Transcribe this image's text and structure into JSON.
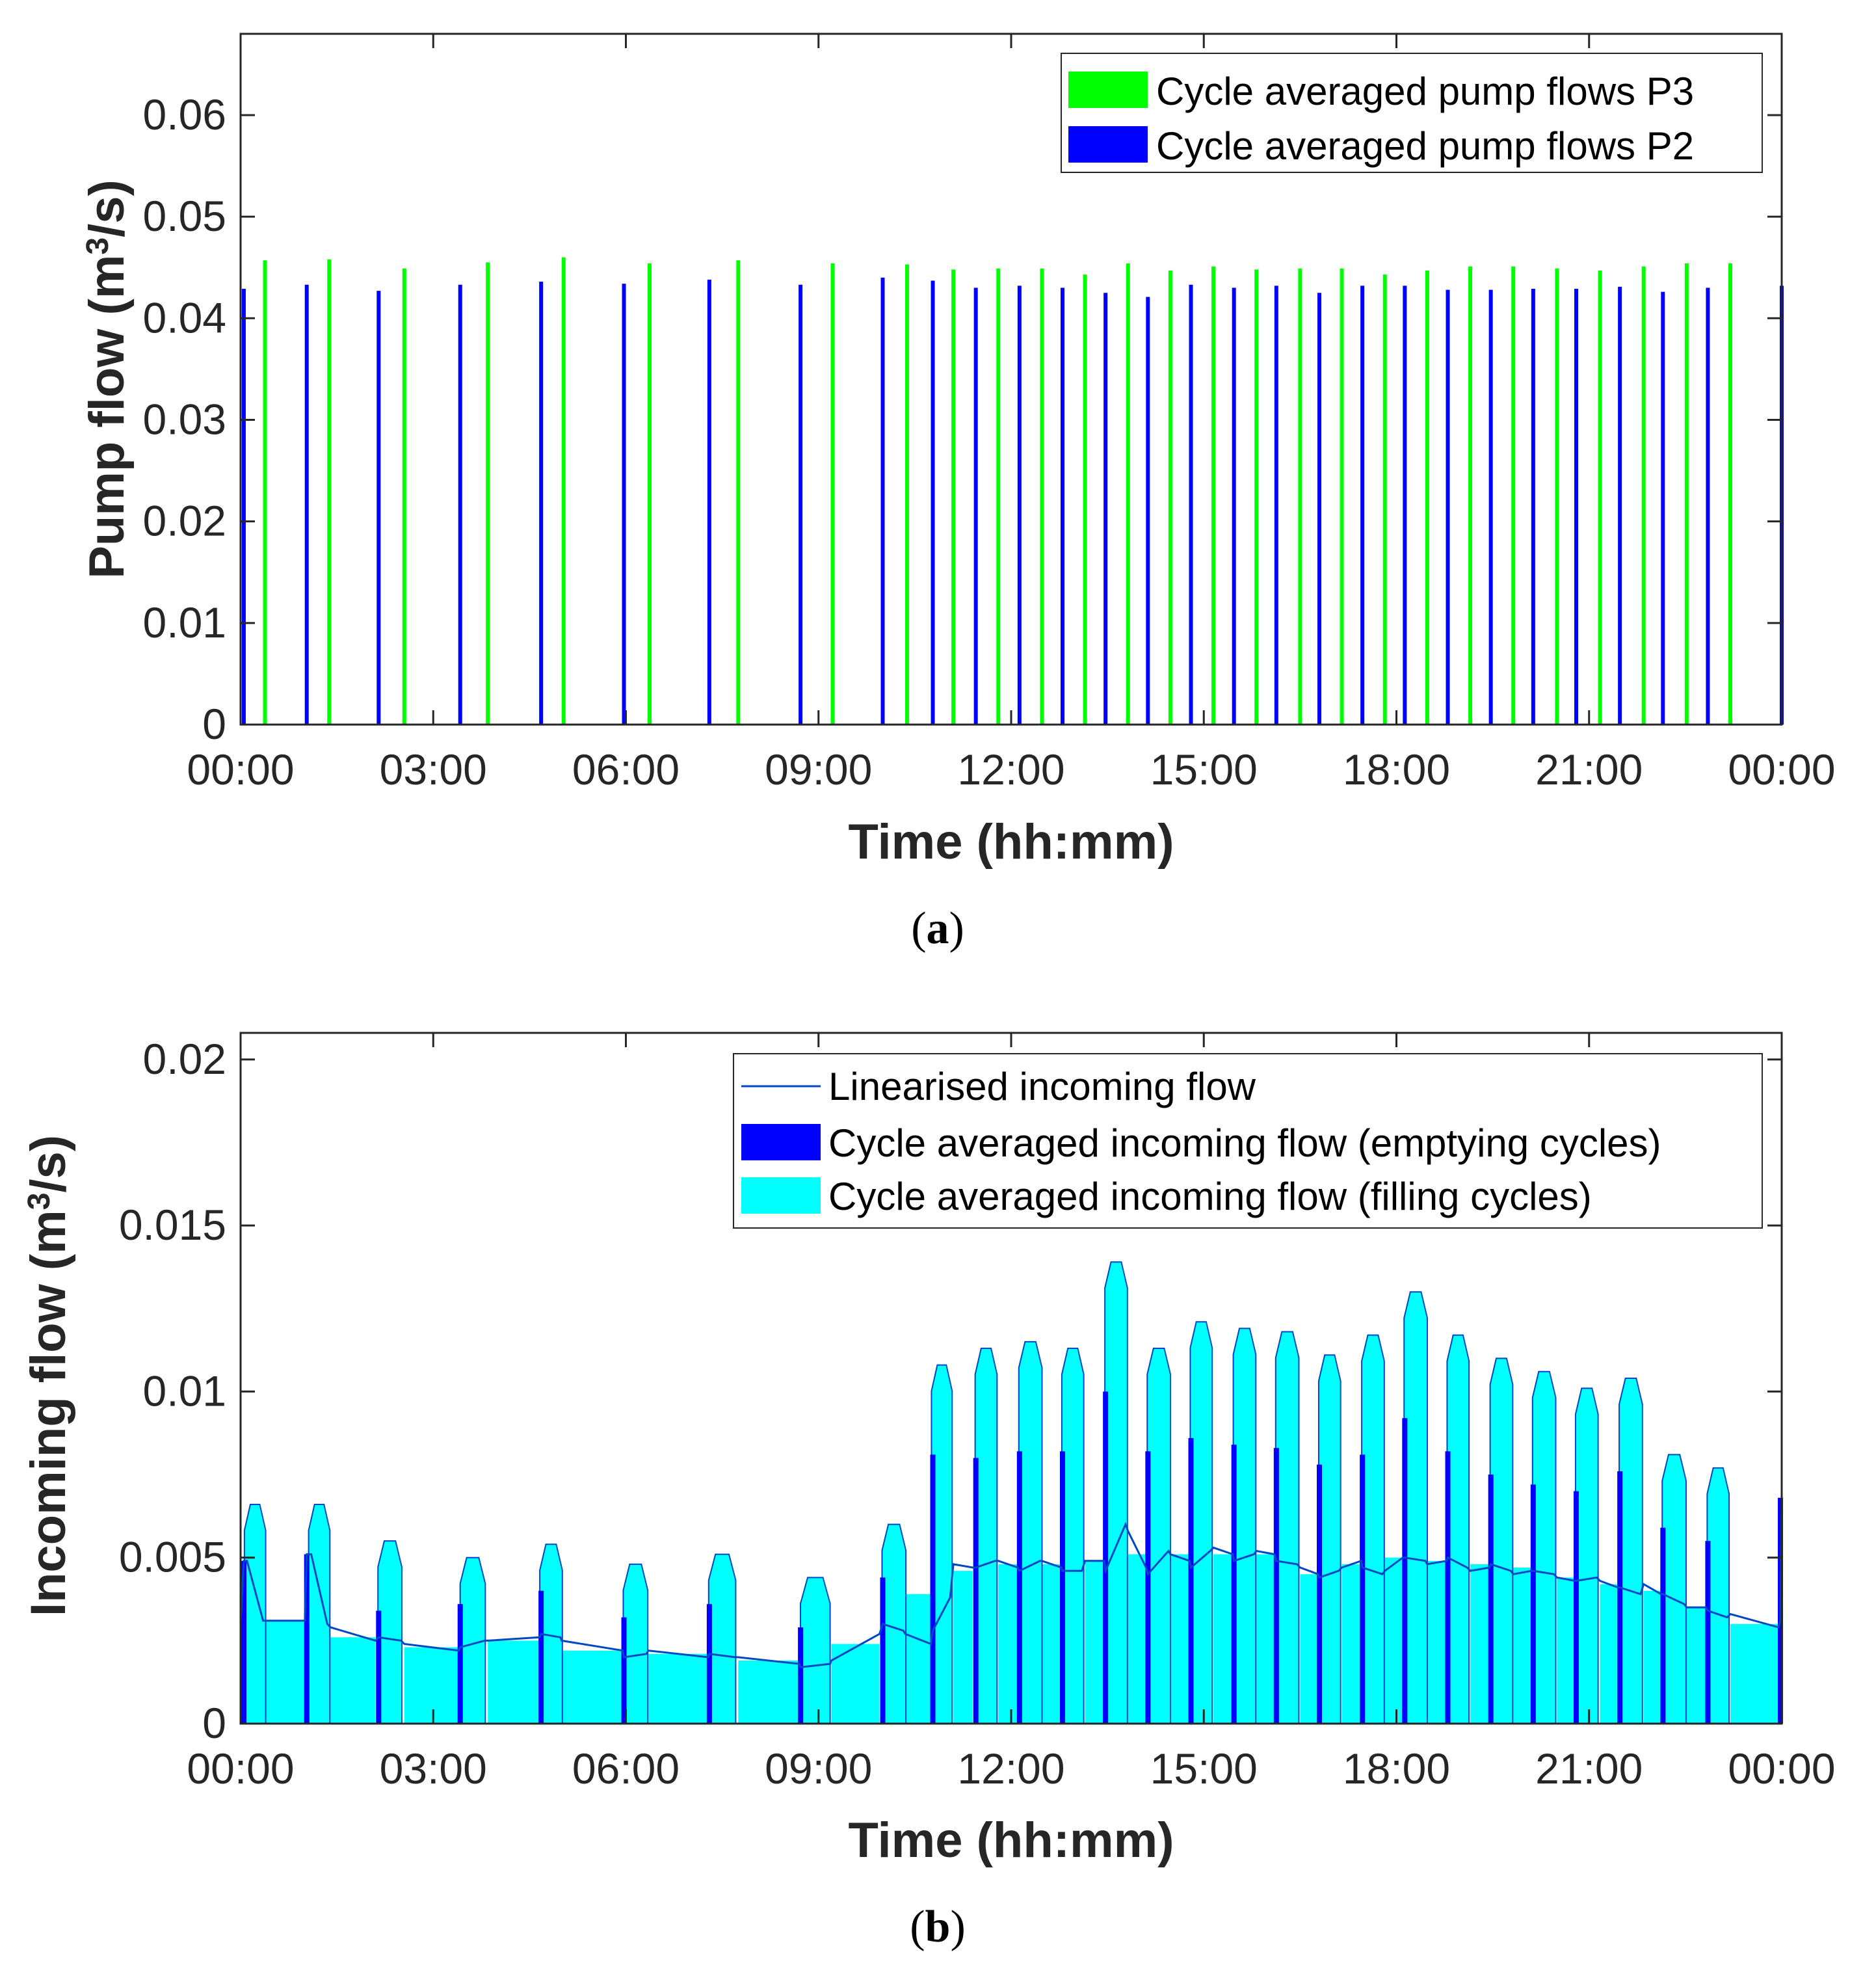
{
  "chart_data": [
    {
      "id": "a",
      "panel_label": "a",
      "type": "bar",
      "xlabel": "Time (hh:mm)",
      "ylabel": "Pump flow (m³/s)",
      "ylabel_parts": [
        "Pump flow (m",
        "3",
        "/s)"
      ],
      "xlim": [
        0,
        24
      ],
      "ylim": [
        0,
        0.068
      ],
      "xticks": [
        0,
        3,
        6,
        9,
        12,
        15,
        18,
        21,
        24
      ],
      "xtick_labels": [
        "00:00",
        "03:00",
        "06:00",
        "09:00",
        "12:00",
        "15:00",
        "18:00",
        "21:00",
        "00:00"
      ],
      "yticks": [
        0,
        0.01,
        0.02,
        0.03,
        0.04,
        0.05,
        0.06
      ],
      "ytick_labels": [
        "0",
        "0.01",
        "0.02",
        "0.03",
        "0.04",
        "0.05",
        "0.06"
      ],
      "legend_position": "top-right",
      "series": [
        {
          "name": "Cycle averaged pump flows P3",
          "color": "#00ff00",
          "x": [
            0.38,
            1.38,
            2.55,
            3.85,
            5.03,
            6.37,
            7.75,
            9.22,
            10.38,
            11.1,
            11.8,
            12.48,
            13.15,
            13.82,
            14.48,
            15.15,
            15.82,
            16.5,
            17.15,
            17.82,
            18.48,
            19.15,
            19.82,
            20.5,
            21.17,
            21.85,
            22.52,
            23.2
          ],
          "values": [
            0.0457,
            0.0458,
            0.0449,
            0.0455,
            0.046,
            0.0454,
            0.0457,
            0.0454,
            0.0453,
            0.0448,
            0.0449,
            0.0449,
            0.0443,
            0.0454,
            0.0447,
            0.0451,
            0.0448,
            0.0449,
            0.0449,
            0.0443,
            0.0447,
            0.0451,
            0.0451,
            0.0449,
            0.0447,
            0.0451,
            0.0454,
            0.0454
          ]
        },
        {
          "name": "Cycle averaged pump flows P2",
          "color": "#0000ff",
          "x": [
            0.05,
            1.03,
            2.15,
            3.42,
            4.68,
            5.97,
            7.3,
            8.72,
            10.0,
            10.78,
            11.45,
            12.13,
            12.8,
            13.47,
            14.13,
            14.8,
            15.47,
            16.13,
            16.8,
            17.47,
            18.13,
            18.8,
            19.47,
            20.13,
            20.8,
            21.48,
            22.15,
            22.85,
            24.0
          ],
          "values": [
            0.0429,
            0.0433,
            0.0427,
            0.0433,
            0.0436,
            0.0434,
            0.0438,
            0.0433,
            0.044,
            0.0437,
            0.043,
            0.0432,
            0.043,
            0.0425,
            0.0421,
            0.0433,
            0.043,
            0.0432,
            0.0425,
            0.0432,
            0.0432,
            0.0428,
            0.0428,
            0.0429,
            0.0429,
            0.0431,
            0.0426,
            0.043,
            0.0432
          ]
        }
      ]
    },
    {
      "id": "b",
      "panel_label": "b",
      "type": "area",
      "xlabel": "Time (hh:mm)",
      "ylabel": "Incoming flow (m³/s)",
      "ylabel_parts": [
        "Incoming flow (m",
        "3",
        "/s)"
      ],
      "xlim": [
        0,
        24
      ],
      "ylim": [
        0,
        0.0208
      ],
      "xticks": [
        0,
        3,
        6,
        9,
        12,
        15,
        18,
        21,
        24
      ],
      "xtick_labels": [
        "00:00",
        "03:00",
        "06:00",
        "09:00",
        "12:00",
        "15:00",
        "18:00",
        "21:00",
        "00:00"
      ],
      "yticks": [
        0,
        0.005,
        0.01,
        0.015,
        0.02
      ],
      "ytick_labels": [
        "0",
        "0.005",
        "0.01",
        "0.015",
        "0.02"
      ],
      "legend_position": "top-right",
      "legend_entries": [
        {
          "name": "Linearised incoming flow",
          "kind": "line",
          "color": "#0047c6"
        },
        {
          "name": "Cycle averaged incoming flow (emptying cycles)",
          "kind": "patch",
          "color": "#0000ff"
        },
        {
          "name": "Cycle averaged incoming flow (filling cycles)",
          "kind": "patch",
          "color": "#00ffff"
        }
      ],
      "filling_cycles": {
        "color": "#00ffff",
        "segments": [
          {
            "start": 0.1,
            "end": 1.0,
            "value": 0.0031
          },
          {
            "start": 1.4,
            "end": 2.1,
            "value": 0.0026
          },
          {
            "start": 2.55,
            "end": 3.4,
            "value": 0.0023
          },
          {
            "start": 3.85,
            "end": 4.65,
            "value": 0.0025
          },
          {
            "start": 5.0,
            "end": 5.95,
            "value": 0.0022
          },
          {
            "start": 6.35,
            "end": 7.28,
            "value": 0.0021
          },
          {
            "start": 7.75,
            "end": 8.7,
            "value": 0.0019
          },
          {
            "start": 9.2,
            "end": 9.95,
            "value": 0.0024
          },
          {
            "start": 10.35,
            "end": 10.75,
            "value": 0.0039
          },
          {
            "start": 11.1,
            "end": 11.4,
            "value": 0.0046
          },
          {
            "start": 11.8,
            "end": 12.1,
            "value": 0.0048
          },
          {
            "start": 12.48,
            "end": 12.78,
            "value": 0.0048
          },
          {
            "start": 13.15,
            "end": 13.45,
            "value": 0.0049
          },
          {
            "start": 13.82,
            "end": 14.1,
            "value": 0.0051
          },
          {
            "start": 14.48,
            "end": 14.78,
            "value": 0.0051
          },
          {
            "start": 15.15,
            "end": 15.45,
            "value": 0.0051
          },
          {
            "start": 15.82,
            "end": 16.1,
            "value": 0.0051
          },
          {
            "start": 16.5,
            "end": 16.78,
            "value": 0.0045
          },
          {
            "start": 17.15,
            "end": 17.45,
            "value": 0.0048
          },
          {
            "start": 17.82,
            "end": 18.1,
            "value": 0.005
          },
          {
            "start": 18.48,
            "end": 18.78,
            "value": 0.0049
          },
          {
            "start": 19.15,
            "end": 19.45,
            "value": 0.0048
          },
          {
            "start": 19.82,
            "end": 20.1,
            "value": 0.0047
          },
          {
            "start": 20.5,
            "end": 20.78,
            "value": 0.0044
          },
          {
            "start": 21.17,
            "end": 21.45,
            "value": 0.0042
          },
          {
            "start": 21.85,
            "end": 22.12,
            "value": 0.004
          },
          {
            "start": 22.52,
            "end": 22.82,
            "value": 0.0035
          },
          {
            "start": 23.2,
            "end": 23.95,
            "value": 0.003
          }
        ]
      },
      "emptying_cycles": {
        "color": "#0000ff",
        "segments": [
          {
            "start": 0.05,
            "end": 0.35,
            "value": 0.0049
          },
          {
            "start": 1.03,
            "end": 1.35,
            "value": 0.0051
          },
          {
            "start": 2.15,
            "end": 2.5,
            "value": 0.0034
          },
          {
            "start": 3.42,
            "end": 3.8,
            "value": 0.0036
          },
          {
            "start": 4.68,
            "end": 4.98,
            "value": 0.004
          },
          {
            "start": 5.97,
            "end": 6.32,
            "value": 0.0032
          },
          {
            "start": 7.3,
            "end": 7.7,
            "value": 0.0036
          },
          {
            "start": 8.72,
            "end": 9.18,
            "value": 0.0029
          },
          {
            "start": 10.0,
            "end": 10.32,
            "value": 0.0044
          },
          {
            "start": 10.78,
            "end": 11.05,
            "value": 0.0081
          },
          {
            "start": 11.45,
            "end": 11.75,
            "value": 0.008
          },
          {
            "start": 12.13,
            "end": 12.45,
            "value": 0.0082
          },
          {
            "start": 12.8,
            "end": 13.1,
            "value": 0.0082
          },
          {
            "start": 13.47,
            "end": 13.78,
            "value": 0.01
          },
          {
            "start": 14.13,
            "end": 14.45,
            "value": 0.0082
          },
          {
            "start": 14.8,
            "end": 15.1,
            "value": 0.0086
          },
          {
            "start": 15.47,
            "end": 15.78,
            "value": 0.0084
          },
          {
            "start": 16.13,
            "end": 16.45,
            "value": 0.0083
          },
          {
            "start": 16.8,
            "end": 17.1,
            "value": 0.0078
          },
          {
            "start": 17.47,
            "end": 17.78,
            "value": 0.0081
          },
          {
            "start": 18.13,
            "end": 18.45,
            "value": 0.0092
          },
          {
            "start": 18.8,
            "end": 19.1,
            "value": 0.0082
          },
          {
            "start": 19.47,
            "end": 19.78,
            "value": 0.0075
          },
          {
            "start": 20.13,
            "end": 20.45,
            "value": 0.0072
          },
          {
            "start": 20.8,
            "end": 21.12,
            "value": 0.007
          },
          {
            "start": 21.48,
            "end": 21.8,
            "value": 0.0076
          },
          {
            "start": 22.15,
            "end": 22.48,
            "value": 0.0059
          },
          {
            "start": 22.85,
            "end": 23.15,
            "value": 0.0055
          },
          {
            "start": 23.98,
            "end": 24.0,
            "value": 0.0068
          }
        ]
      },
      "linearised": {
        "name": "Linearised incoming flow",
        "color": "#0047c6",
        "x": [
          0.0,
          0.05,
          0.1,
          0.35,
          1.0,
          1.03,
          1.1,
          1.35,
          1.4,
          2.1,
          2.15,
          2.5,
          2.55,
          3.4,
          3.42,
          3.8,
          3.85,
          4.65,
          4.68,
          4.98,
          5.0,
          5.95,
          5.97,
          6.32,
          6.35,
          7.28,
          7.3,
          7.7,
          7.75,
          8.7,
          8.72,
          9.18,
          9.2,
          9.95,
          10.0,
          10.32,
          10.35,
          10.75,
          10.78,
          11.05,
          11.1,
          11.4,
          11.45,
          11.75,
          11.8,
          12.1,
          12.13,
          12.45,
          12.48,
          12.78,
          12.8,
          13.1,
          13.15,
          13.45,
          13.47,
          13.78,
          13.82,
          14.1,
          14.13,
          14.45,
          14.48,
          14.78,
          14.8,
          15.1,
          15.15,
          15.45,
          15.47,
          15.78,
          15.82,
          16.1,
          16.13,
          16.45,
          16.5,
          16.78,
          16.8,
          17.1,
          17.15,
          17.45,
          17.47,
          17.78,
          17.82,
          18.1,
          18.13,
          18.45,
          18.48,
          18.78,
          18.8,
          19.1,
          19.15,
          19.45,
          19.47,
          19.78,
          19.82,
          20.1,
          20.13,
          20.45,
          20.5,
          20.78,
          20.8,
          21.12,
          21.17,
          21.45,
          21.48,
          21.8,
          21.85,
          22.12,
          22.15,
          22.48,
          22.52,
          22.82,
          22.85,
          23.15,
          23.2,
          23.95,
          23.98,
          24.0
        ],
        "values": [
          0.003,
          0.0049,
          0.0049,
          0.0031,
          0.0031,
          0.0051,
          0.0051,
          0.003,
          0.0029,
          0.0025,
          0.0026,
          0.0025,
          0.0024,
          0.0022,
          0.0023,
          0.0025,
          0.0025,
          0.0026,
          0.0027,
          0.0026,
          0.0025,
          0.0022,
          0.002,
          0.0021,
          0.0022,
          0.002,
          0.0021,
          0.002,
          0.002,
          0.0018,
          0.0017,
          0.0018,
          0.0019,
          0.0027,
          0.003,
          0.0028,
          0.0027,
          0.0024,
          0.0028,
          0.0038,
          0.0048,
          0.0047,
          0.0047,
          0.0049,
          0.0049,
          0.0047,
          0.0046,
          0.0049,
          0.0049,
          0.0047,
          0.0046,
          0.0046,
          0.0049,
          0.0049,
          0.0046,
          0.006,
          0.0058,
          0.0047,
          0.0045,
          0.0052,
          0.0051,
          0.0049,
          0.0047,
          0.0052,
          0.0053,
          0.0051,
          0.0049,
          0.0051,
          0.0052,
          0.0051,
          0.0049,
          0.0048,
          0.0047,
          0.0045,
          0.0044,
          0.0046,
          0.0047,
          0.0049,
          0.0047,
          0.0045,
          0.0046,
          0.005,
          0.005,
          0.0049,
          0.0048,
          0.0049,
          0.005,
          0.0047,
          0.0046,
          0.0047,
          0.0048,
          0.0046,
          0.0045,
          0.0046,
          0.0046,
          0.0045,
          0.0044,
          0.0043,
          0.0043,
          0.0044,
          0.0043,
          0.0041,
          0.0041,
          0.0039,
          0.0042,
          0.0039,
          0.0039,
          0.0036,
          0.0035,
          0.0035,
          0.0034,
          0.0032,
          0.0033,
          0.0029,
          0.0031,
          0.0068
        ]
      },
      "filling_peaks": [
        {
          "start": 0.12,
          "end": 0.33,
          "value": 0.0066
        },
        {
          "start": 1.12,
          "end": 1.33,
          "value": 0.0066
        },
        {
          "start": 2.2,
          "end": 2.45,
          "value": 0.0055
        },
        {
          "start": 3.48,
          "end": 3.75,
          "value": 0.005
        },
        {
          "start": 4.72,
          "end": 4.95,
          "value": 0.0054
        },
        {
          "start": 6.02,
          "end": 6.28,
          "value": 0.0048
        },
        {
          "start": 7.35,
          "end": 7.65,
          "value": 0.0051
        },
        {
          "start": 8.78,
          "end": 9.12,
          "value": 0.0044
        },
        {
          "start": 10.05,
          "end": 10.3,
          "value": 0.006
        },
        {
          "start": 10.82,
          "end": 11.02,
          "value": 0.0108
        },
        {
          "start": 11.5,
          "end": 11.72,
          "value": 0.0113
        },
        {
          "start": 12.18,
          "end": 12.42,
          "value": 0.0115
        },
        {
          "start": 12.85,
          "end": 13.07,
          "value": 0.0113
        },
        {
          "start": 13.52,
          "end": 13.75,
          "value": 0.0139
        },
        {
          "start": 14.18,
          "end": 14.42,
          "value": 0.0113
        },
        {
          "start": 14.85,
          "end": 15.07,
          "value": 0.0121
        },
        {
          "start": 15.52,
          "end": 15.75,
          "value": 0.0119
        },
        {
          "start": 16.18,
          "end": 16.42,
          "value": 0.0118
        },
        {
          "start": 16.85,
          "end": 17.07,
          "value": 0.0111
        },
        {
          "start": 17.52,
          "end": 17.75,
          "value": 0.0117
        },
        {
          "start": 18.18,
          "end": 18.42,
          "value": 0.013
        },
        {
          "start": 18.85,
          "end": 19.07,
          "value": 0.0117
        },
        {
          "start": 19.52,
          "end": 19.75,
          "value": 0.011
        },
        {
          "start": 20.18,
          "end": 20.42,
          "value": 0.0106
        },
        {
          "start": 20.85,
          "end": 21.08,
          "value": 0.0101
        },
        {
          "start": 21.53,
          "end": 21.77,
          "value": 0.0104
        },
        {
          "start": 22.2,
          "end": 22.45,
          "value": 0.0081
        },
        {
          "start": 22.9,
          "end": 23.12,
          "value": 0.0077
        }
      ]
    }
  ]
}
